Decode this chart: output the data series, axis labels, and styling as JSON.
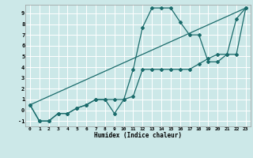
{
  "title": "",
  "xlabel": "Humidex (Indice chaleur)",
  "ylabel": "",
  "bg_color": "#cce8e8",
  "line_color": "#1a6b6b",
  "grid_color": "#ffffff",
  "xlim": [
    -0.5,
    23.5
  ],
  "ylim": [
    -1.5,
    9.8
  ],
  "xticks": [
    0,
    1,
    2,
    3,
    4,
    5,
    6,
    7,
    8,
    9,
    10,
    11,
    12,
    13,
    14,
    15,
    16,
    17,
    18,
    19,
    20,
    21,
    22,
    23
  ],
  "yticks": [
    -1,
    0,
    1,
    2,
    3,
    4,
    5,
    6,
    7,
    8,
    9
  ],
  "line1_x": [
    0,
    1,
    2,
    3,
    4,
    5,
    6,
    7,
    8,
    9,
    10,
    11,
    12,
    13,
    14,
    15,
    16,
    17,
    18,
    19,
    20,
    21,
    22,
    23
  ],
  "line1_y": [
    0.5,
    -1,
    -1,
    -0.3,
    -0.3,
    0.2,
    0.5,
    1.0,
    1.0,
    1.0,
    1.0,
    3.8,
    7.7,
    9.5,
    9.5,
    9.5,
    8.2,
    7.0,
    7.0,
    4.5,
    4.5,
    5.2,
    8.5,
    9.5
  ],
  "line2_x": [
    0,
    1,
    2,
    3,
    4,
    5,
    6,
    7,
    8,
    9,
    10,
    11,
    12,
    13,
    14,
    15,
    16,
    17,
    18,
    19,
    20,
    21,
    22,
    23
  ],
  "line2_y": [
    0.5,
    -1,
    -1,
    -0.3,
    -0.3,
    0.2,
    0.5,
    1.0,
    1.0,
    -0.3,
    1.0,
    1.3,
    3.8,
    3.8,
    3.8,
    3.8,
    3.8,
    3.8,
    4.3,
    4.8,
    5.2,
    5.2,
    5.2,
    9.5
  ],
  "line3_x": [
    0,
    23
  ],
  "line3_y": [
    0.5,
    9.5
  ]
}
